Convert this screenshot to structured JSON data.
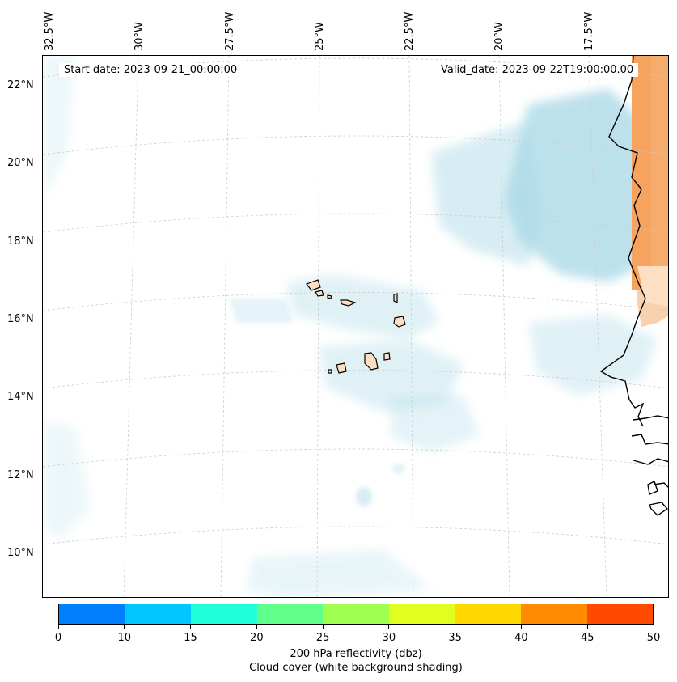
{
  "map": {
    "start_date_text": "Start date: 2023-09-21_00:00:00",
    "valid_date_text": "Valid_date: 2023-09-22T19:00:00.00",
    "lon_labels": [
      "32.5°W",
      "30°W",
      "27.5°W",
      "25°W",
      "22.5°W",
      "20°W",
      "17.5°W"
    ],
    "lat_labels": [
      "22°N",
      "20°N",
      "18°N",
      "16°N",
      "14°N",
      "12°N",
      "10°N"
    ],
    "layers": [
      "cloud-cover-shading",
      "gridlines",
      "coastline",
      "cape-verde-islands",
      "west-africa-land"
    ],
    "colors": {
      "cloud": "#a8d8e6",
      "land": "#f5a35f",
      "island": "#fde0c4",
      "coast": "#000000"
    }
  },
  "colorbar": {
    "ticks": [
      "0",
      "10",
      "15",
      "20",
      "25",
      "30",
      "35",
      "40",
      "45",
      "50"
    ],
    "colors": [
      "#0080ff",
      "#00c8ff",
      "#20ffd8",
      "#60ff8c",
      "#a0ff50",
      "#e0ff20",
      "#ffd800",
      "#ff8c00",
      "#ff4a00"
    ],
    "label_line1": "200 hPa reflectivity (dbz)",
    "label_line2": "Cloud cover (white background shading)"
  }
}
